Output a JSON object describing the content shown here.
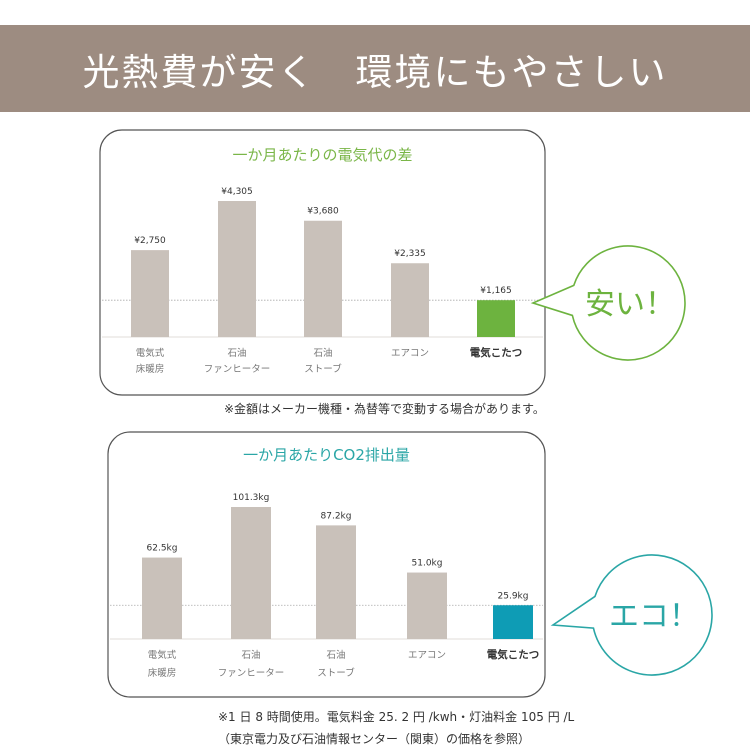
{
  "header": {
    "title": "光熱費が安く　環境にもやさしい"
  },
  "chart_data": [
    {
      "type": "bar",
      "title": "一か月あたりの電気代の差",
      "categories": [
        [
          "電気式",
          "床暖房"
        ],
        [
          "石油",
          "ファンヒーター"
        ],
        [
          "石油",
          "ストーブ"
        ],
        [
          "エアコン",
          ""
        ],
        [
          "電気こたつ",
          ""
        ]
      ],
      "values": [
        2750,
        4305,
        3680,
        2335,
        1165
      ],
      "data_labels": [
        "¥2,750",
        "¥4,305",
        "¥3,680",
        "¥2,335",
        "¥1,165"
      ],
      "highlight_index": 4,
      "highlight_color": "#6db33f",
      "bar_color": "#c9c1ba",
      "title_color": "#7ab648",
      "reference_line_at": 1165,
      "callout": "安い！",
      "note": [
        "※金額はメーカー機種・為替等で変動する場合があります。"
      ]
    },
    {
      "type": "bar",
      "title": "一か月あたりCO2排出量",
      "categories": [
        [
          "電気式",
          "床暖房"
        ],
        [
          "石油",
          "ファンヒーター"
        ],
        [
          "石油",
          "ストーブ"
        ],
        [
          "エアコン",
          ""
        ],
        [
          "電気こたつ",
          ""
        ]
      ],
      "values": [
        62.5,
        101.3,
        87.2,
        51.0,
        25.9
      ],
      "data_labels": [
        "62.5kg",
        "101.3kg",
        "87.2kg",
        "51.0kg",
        "25.9kg"
      ],
      "highlight_index": 4,
      "highlight_color": "#0e9cb5",
      "bar_color": "#c9c1ba",
      "title_color": "#2aa6a6",
      "reference_line_at": 25.9,
      "callout": "エコ！",
      "note": [
        "※1 日 8 時間使用。電気料金 25. 2 円 /kwh・灯油料金 105 円 /L",
        "（東京電力及び石油情報センター（関東）の価格を参照）"
      ]
    }
  ]
}
